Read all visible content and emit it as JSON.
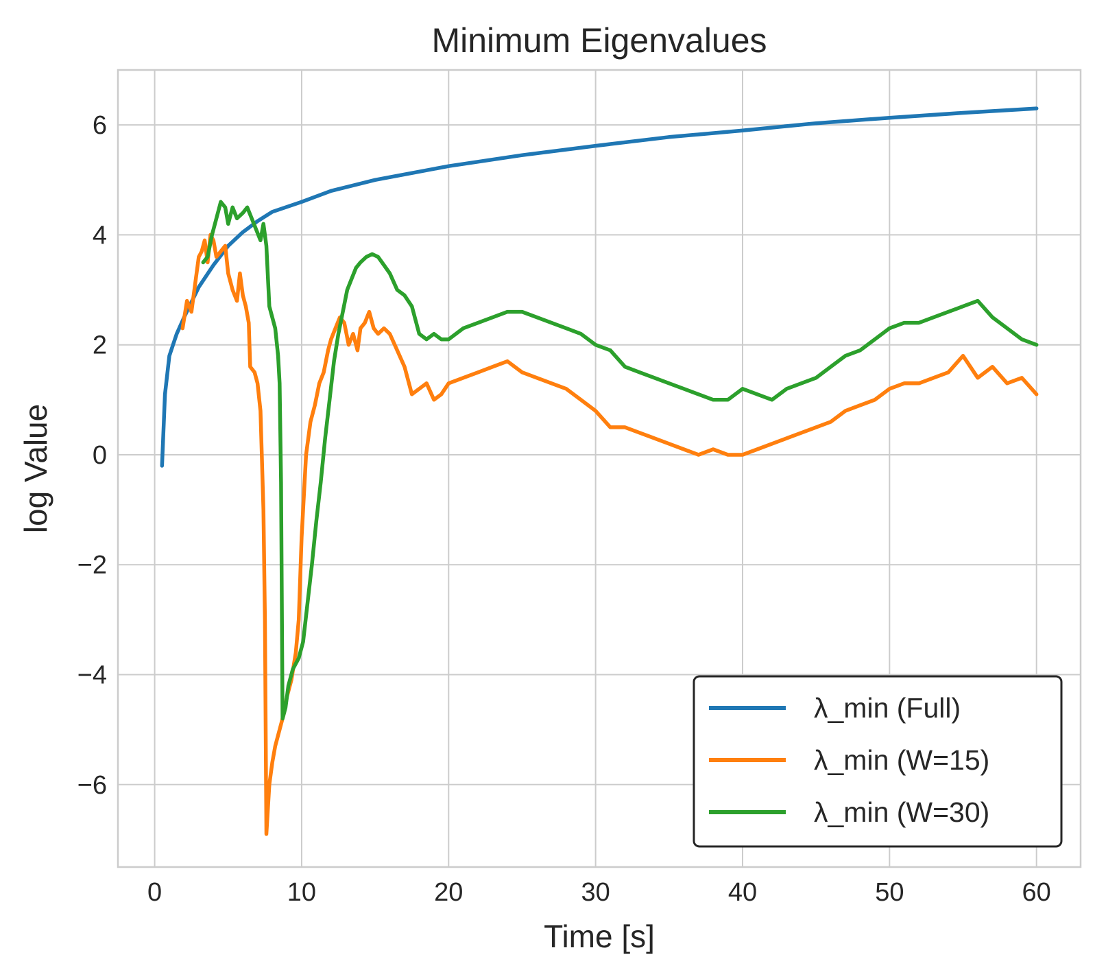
{
  "chart_data": {
    "type": "line",
    "title": "Minimum Eigenvalues",
    "xlabel": "Time [s]",
    "ylabel": "log Value",
    "xlim": [
      -2.5,
      63
    ],
    "ylim": [
      -7.5,
      7
    ],
    "xticks": [
      0,
      10,
      20,
      30,
      40,
      50,
      60
    ],
    "yticks": [
      -6,
      -4,
      -2,
      0,
      2,
      4,
      6
    ],
    "ytick_labels": [
      "−6",
      "−4",
      "−2",
      "0",
      "2",
      "4",
      "6"
    ],
    "grid": true,
    "legend_position": "bottom-right",
    "series": [
      {
        "name": "λ_min (Full)",
        "color": "#1f77b4",
        "points": [
          [
            0.5,
            -0.2
          ],
          [
            0.7,
            1.1
          ],
          [
            1.0,
            1.8
          ],
          [
            1.5,
            2.2
          ],
          [
            2,
            2.5
          ],
          [
            3,
            3.05
          ],
          [
            4,
            3.45
          ],
          [
            5,
            3.8
          ],
          [
            6,
            4.05
          ],
          [
            7,
            4.25
          ],
          [
            8,
            4.42
          ],
          [
            10,
            4.6
          ],
          [
            12,
            4.8
          ],
          [
            15,
            5.0
          ],
          [
            20,
            5.25
          ],
          [
            25,
            5.45
          ],
          [
            30,
            5.62
          ],
          [
            35,
            5.78
          ],
          [
            40,
            5.9
          ],
          [
            45,
            6.03
          ],
          [
            50,
            6.13
          ],
          [
            55,
            6.22
          ],
          [
            60,
            6.3
          ]
        ]
      },
      {
        "name": "λ_min (W=15)",
        "color": "#ff7f0e",
        "points": [
          [
            1.9,
            2.3
          ],
          [
            2.2,
            2.8
          ],
          [
            2.5,
            2.6
          ],
          [
            2.8,
            3.2
          ],
          [
            3.0,
            3.6
          ],
          [
            3.2,
            3.7
          ],
          [
            3.4,
            3.9
          ],
          [
            3.6,
            3.5
          ],
          [
            3.8,
            4.0
          ],
          [
            4.0,
            3.9
          ],
          [
            4.2,
            3.6
          ],
          [
            4.5,
            3.7
          ],
          [
            4.8,
            3.8
          ],
          [
            5.0,
            3.3
          ],
          [
            5.3,
            3.0
          ],
          [
            5.6,
            2.8
          ],
          [
            5.8,
            3.3
          ],
          [
            6.0,
            2.9
          ],
          [
            6.2,
            2.7
          ],
          [
            6.4,
            2.4
          ],
          [
            6.5,
            1.6
          ],
          [
            6.8,
            1.5
          ],
          [
            7.0,
            1.3
          ],
          [
            7.2,
            0.8
          ],
          [
            7.4,
            -1.0
          ],
          [
            7.5,
            -3.0
          ],
          [
            7.6,
            -6.9
          ],
          [
            7.8,
            -6.0
          ],
          [
            8.0,
            -5.6
          ],
          [
            8.2,
            -5.3
          ],
          [
            8.5,
            -5.0
          ],
          [
            8.8,
            -4.7
          ],
          [
            9.0,
            -4.4
          ],
          [
            9.3,
            -4.1
          ],
          [
            9.6,
            -3.6
          ],
          [
            9.8,
            -3.0
          ],
          [
            10.0,
            -1.5
          ],
          [
            10.3,
            0.0
          ],
          [
            10.6,
            0.6
          ],
          [
            10.9,
            0.9
          ],
          [
            11.2,
            1.3
          ],
          [
            11.5,
            1.5
          ],
          [
            11.8,
            1.9
          ],
          [
            12.0,
            2.1
          ],
          [
            12.3,
            2.3
          ],
          [
            12.6,
            2.5
          ],
          [
            12.9,
            2.4
          ],
          [
            13.2,
            2.0
          ],
          [
            13.5,
            2.2
          ],
          [
            13.8,
            1.9
          ],
          [
            14.0,
            2.3
          ],
          [
            14.3,
            2.4
          ],
          [
            14.6,
            2.6
          ],
          [
            14.9,
            2.3
          ],
          [
            15.2,
            2.2
          ],
          [
            15.6,
            2.3
          ],
          [
            16.0,
            2.2
          ],
          [
            16.5,
            1.9
          ],
          [
            17.0,
            1.6
          ],
          [
            17.5,
            1.1
          ],
          [
            18,
            1.2
          ],
          [
            18.5,
            1.3
          ],
          [
            19,
            1.0
          ],
          [
            19.5,
            1.1
          ],
          [
            20,
            1.3
          ],
          [
            21,
            1.4
          ],
          [
            22,
            1.5
          ],
          [
            23,
            1.6
          ],
          [
            24,
            1.7
          ],
          [
            25,
            1.5
          ],
          [
            26,
            1.4
          ],
          [
            27,
            1.3
          ],
          [
            28,
            1.2
          ],
          [
            29,
            1.0
          ],
          [
            30,
            0.8
          ],
          [
            31,
            0.5
          ],
          [
            32,
            0.5
          ],
          [
            33,
            0.4
          ],
          [
            34,
            0.3
          ],
          [
            35,
            0.2
          ],
          [
            36,
            0.1
          ],
          [
            37,
            0.0
          ],
          [
            38,
            0.1
          ],
          [
            39,
            0.0
          ],
          [
            40,
            0.0
          ],
          [
            41,
            0.1
          ],
          [
            42,
            0.2
          ],
          [
            43,
            0.3
          ],
          [
            44,
            0.4
          ],
          [
            45,
            0.5
          ],
          [
            46,
            0.6
          ],
          [
            47,
            0.8
          ],
          [
            48,
            0.9
          ],
          [
            49,
            1.0
          ],
          [
            50,
            1.2
          ],
          [
            51,
            1.3
          ],
          [
            52,
            1.3
          ],
          [
            53,
            1.4
          ],
          [
            54,
            1.5
          ],
          [
            55,
            1.8
          ],
          [
            56,
            1.4
          ],
          [
            57,
            1.6
          ],
          [
            58,
            1.3
          ],
          [
            59,
            1.4
          ],
          [
            60,
            1.1
          ]
        ]
      },
      {
        "name": "λ_min (W=30)",
        "color": "#2ca02c",
        "points": [
          [
            3.3,
            3.5
          ],
          [
            3.6,
            3.6
          ],
          [
            3.9,
            4.0
          ],
          [
            4.2,
            4.3
          ],
          [
            4.5,
            4.6
          ],
          [
            4.8,
            4.5
          ],
          [
            5.0,
            4.2
          ],
          [
            5.3,
            4.5
          ],
          [
            5.6,
            4.3
          ],
          [
            6.0,
            4.4
          ],
          [
            6.3,
            4.5
          ],
          [
            6.6,
            4.3
          ],
          [
            6.9,
            4.1
          ],
          [
            7.2,
            3.9
          ],
          [
            7.4,
            4.2
          ],
          [
            7.6,
            3.8
          ],
          [
            7.8,
            2.7
          ],
          [
            8.0,
            2.5
          ],
          [
            8.2,
            2.3
          ],
          [
            8.4,
            1.8
          ],
          [
            8.5,
            1.3
          ],
          [
            8.6,
            -0.5
          ],
          [
            8.7,
            -4.8
          ],
          [
            8.9,
            -4.6
          ],
          [
            9.1,
            -4.2
          ],
          [
            9.4,
            -3.9
          ],
          [
            9.8,
            -3.7
          ],
          [
            10.1,
            -3.4
          ],
          [
            10.4,
            -2.7
          ],
          [
            10.7,
            -2.0
          ],
          [
            11.0,
            -1.2
          ],
          [
            11.3,
            -0.5
          ],
          [
            11.6,
            0.3
          ],
          [
            11.9,
            1.0
          ],
          [
            12.2,
            1.7
          ],
          [
            12.5,
            2.2
          ],
          [
            12.8,
            2.6
          ],
          [
            13.1,
            3.0
          ],
          [
            13.4,
            3.2
          ],
          [
            13.7,
            3.4
          ],
          [
            14.0,
            3.5
          ],
          [
            14.4,
            3.6
          ],
          [
            14.8,
            3.65
          ],
          [
            15.2,
            3.6
          ],
          [
            15.6,
            3.45
          ],
          [
            16.0,
            3.3
          ],
          [
            16.5,
            3.0
          ],
          [
            17.0,
            2.9
          ],
          [
            17.5,
            2.7
          ],
          [
            18.0,
            2.2
          ],
          [
            18.5,
            2.1
          ],
          [
            19,
            2.2
          ],
          [
            19.5,
            2.1
          ],
          [
            20,
            2.1
          ],
          [
            21,
            2.3
          ],
          [
            22,
            2.4
          ],
          [
            23,
            2.5
          ],
          [
            24,
            2.6
          ],
          [
            25,
            2.6
          ],
          [
            26,
            2.5
          ],
          [
            27,
            2.4
          ],
          [
            28,
            2.3
          ],
          [
            29,
            2.2
          ],
          [
            30,
            2.0
          ],
          [
            31,
            1.9
          ],
          [
            32,
            1.6
          ],
          [
            33,
            1.5
          ],
          [
            34,
            1.4
          ],
          [
            35,
            1.3
          ],
          [
            36,
            1.2
          ],
          [
            37,
            1.1
          ],
          [
            38,
            1.0
          ],
          [
            39,
            1.0
          ],
          [
            40,
            1.2
          ],
          [
            41,
            1.1
          ],
          [
            42,
            1.0
          ],
          [
            43,
            1.2
          ],
          [
            44,
            1.3
          ],
          [
            45,
            1.4
          ],
          [
            46,
            1.6
          ],
          [
            47,
            1.8
          ],
          [
            48,
            1.9
          ],
          [
            49,
            2.1
          ],
          [
            50,
            2.3
          ],
          [
            51,
            2.4
          ],
          [
            52,
            2.4
          ],
          [
            53,
            2.5
          ],
          [
            54,
            2.6
          ],
          [
            55,
            2.7
          ],
          [
            56,
            2.8
          ],
          [
            57,
            2.5
          ],
          [
            58,
            2.3
          ],
          [
            59,
            2.1
          ],
          [
            60,
            2.0
          ]
        ]
      }
    ]
  }
}
